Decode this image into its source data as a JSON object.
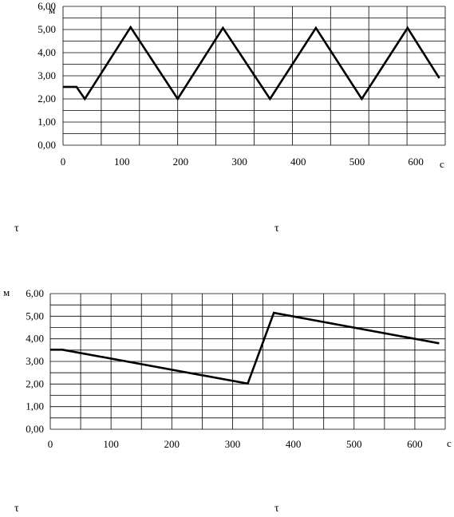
{
  "charts": {
    "top": {
      "y_unit": "м",
      "x_unit": "с",
      "notes": [
        "τ",
        "τ"
      ]
    },
    "bottom": {
      "y_unit": "м",
      "x_unit": "с",
      "notes": [
        "τ",
        "τ"
      ]
    }
  },
  "chart_data": [
    {
      "type": "line",
      "xlim": [
        0,
        650
      ],
      "ylim": [
        0,
        6
      ],
      "grid": true,
      "x_ticks": [
        "0",
        "100",
        "200",
        "300",
        "400",
        "500",
        "600"
      ],
      "y_ticks": [
        "0,00",
        "1,00",
        "2,00",
        "3,00",
        "4,00",
        "5,00",
        "6,00"
      ],
      "line_color": "#000000",
      "series": [
        {
          "x": [
            0,
            23,
            37,
            115,
            195,
            272,
            352,
            430,
            508,
            586,
            640
          ],
          "y": [
            2.52,
            2.52,
            2.0,
            5.1,
            2.0,
            5.07,
            2.0,
            5.07,
            2.0,
            5.07,
            2.9
          ]
        }
      ]
    },
    {
      "type": "line",
      "xlim": [
        0,
        650
      ],
      "ylim": [
        0,
        6
      ],
      "grid": true,
      "x_ticks": [
        "0",
        "100",
        "200",
        "300",
        "400",
        "500",
        "600"
      ],
      "y_ticks": [
        "0,00",
        "1,00",
        "2,00",
        "3,00",
        "4,00",
        "5,00",
        "6,00"
      ],
      "line_color": "#000000",
      "series": [
        {
          "x": [
            0,
            20,
            325,
            368,
            640
          ],
          "y": [
            3.52,
            3.52,
            2.02,
            5.15,
            3.8
          ]
        }
      ]
    }
  ]
}
